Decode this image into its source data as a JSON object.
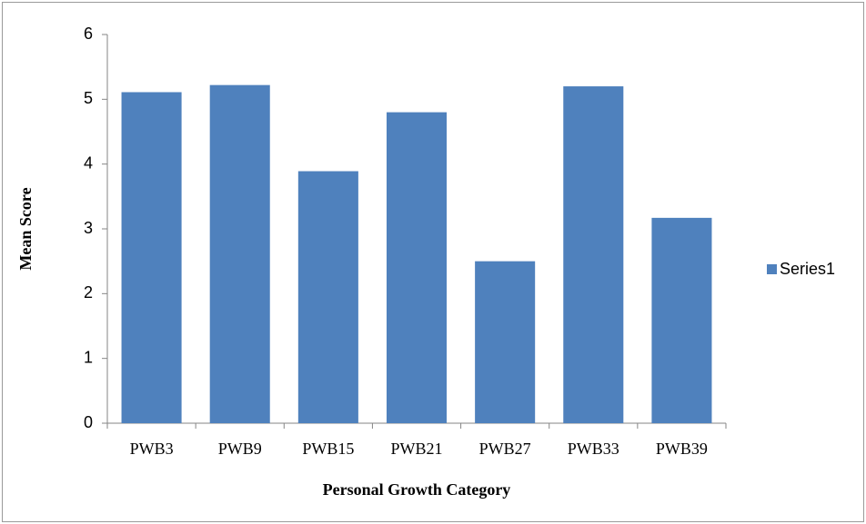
{
  "chart_data": {
    "type": "bar",
    "x_label": "Personal Growth Category",
    "y_label": "Mean Score",
    "categories": [
      "PWB3",
      "PWB9",
      "PWB15",
      "PWB21",
      "PWB27",
      "PWB33",
      "PWB39"
    ],
    "series": [
      {
        "name": "Series1",
        "color": "#4f81bd",
        "values": [
          5.11,
          5.22,
          3.89,
          4.8,
          2.5,
          5.2,
          3.17
        ]
      }
    ],
    "ylim": [
      0,
      6
    ],
    "yticks": [
      0,
      1,
      2,
      3,
      4,
      5,
      6
    ],
    "legend": "right"
  }
}
